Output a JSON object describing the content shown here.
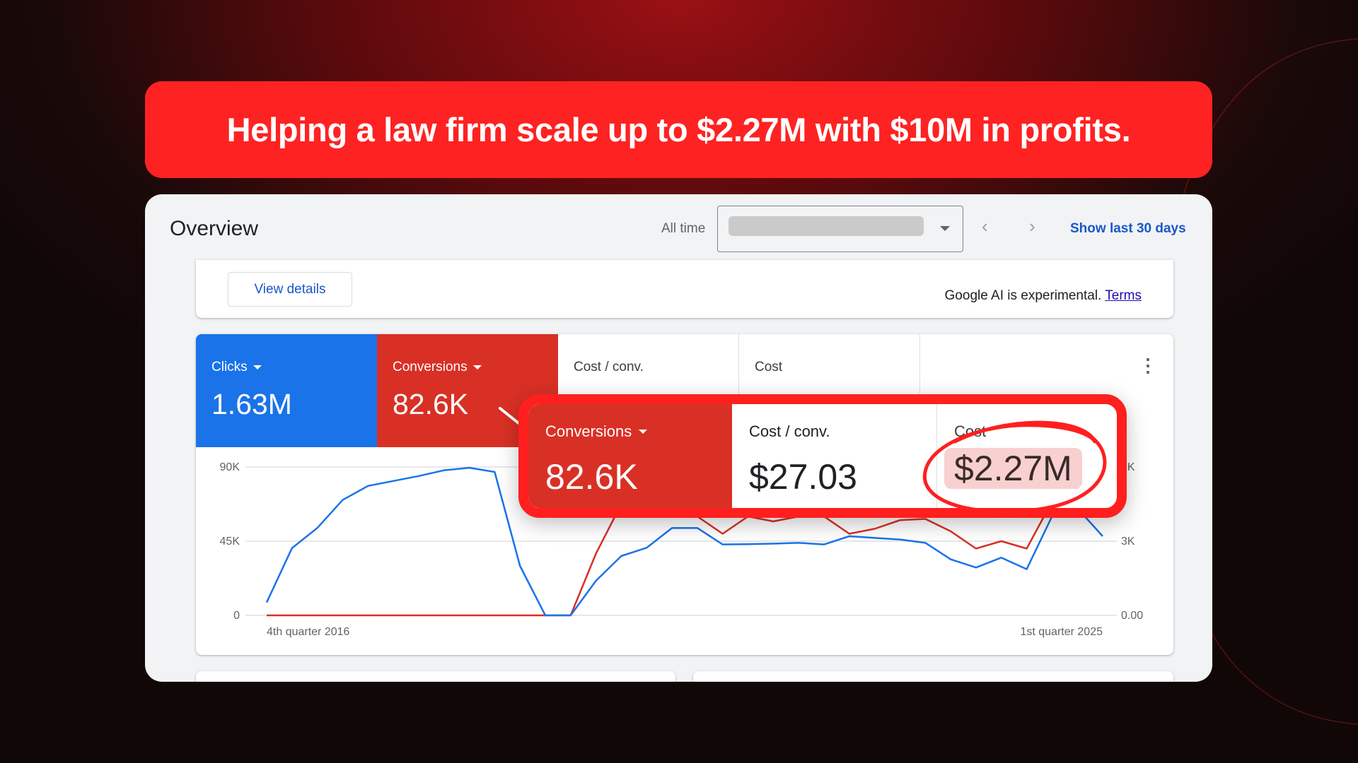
{
  "banner": {
    "headline": "Helping a law firm scale up to $2.27M with $10M in profits."
  },
  "overview": {
    "title": "Overview",
    "range_label": "All time",
    "prev_icon": "chevron-left-icon",
    "next_icon": "chevron-right-icon",
    "show_last_30": "Show last 30 days"
  },
  "ai_panel": {
    "view_details": "View details",
    "note": "Google AI is experimental.",
    "terms": "Terms"
  },
  "tiles": [
    {
      "label": "Clicks",
      "value": "1.63M",
      "color": "#1a73e8"
    },
    {
      "label": "Conversions",
      "value": "82.6K",
      "color": "#d93025"
    },
    {
      "label": "Cost / conv."
    },
    {
      "label": "Cost"
    }
  ],
  "callout": {
    "tiles": [
      {
        "label": "Conversions",
        "value": "82.6K"
      },
      {
        "label": "Cost / conv.",
        "value": "$27.03"
      },
      {
        "label": "Cost",
        "value": "$2.27M"
      }
    ],
    "border_color": "#ff1f1f",
    "highlight_color": "#f9d0d0"
  },
  "chart_data": {
    "type": "line",
    "x_start_label": "4th quarter 2016",
    "x_end_label": "1st quarter 2025",
    "left_axis": {
      "ticks": [
        "0",
        "45K",
        "90K"
      ],
      "ylim": [
        0,
        90000
      ]
    },
    "right_axis": {
      "ticks": [
        "0.00",
        "3K",
        "6K"
      ],
      "ylim": [
        0,
        6000
      ]
    },
    "grid": true,
    "series": [
      {
        "name": "Clicks",
        "axis": "left",
        "color": "#1a73e8",
        "values": [
          7800,
          40800,
          53000,
          70000,
          78500,
          81500,
          84500,
          88000,
          89500,
          87000,
          30000,
          0,
          0,
          21000,
          36000,
          41000,
          53000,
          53000,
          43000,
          43200,
          43500,
          44000,
          43000,
          48000,
          47000,
          46000,
          44000,
          34000,
          29000,
          35000,
          28000,
          60000,
          65000,
          48000
        ]
      },
      {
        "name": "Conversions",
        "axis": "right",
        "color": "#d93025",
        "values": [
          0,
          0,
          0,
          0,
          0,
          0,
          0,
          0,
          0,
          0,
          0,
          0,
          0,
          2500,
          4500,
          4500,
          4500,
          4000,
          3300,
          4000,
          3800,
          4000,
          4000,
          3300,
          3500,
          3850,
          3900,
          3400,
          2700,
          3000,
          2700,
          4600,
          4500,
          4300
        ]
      }
    ]
  }
}
